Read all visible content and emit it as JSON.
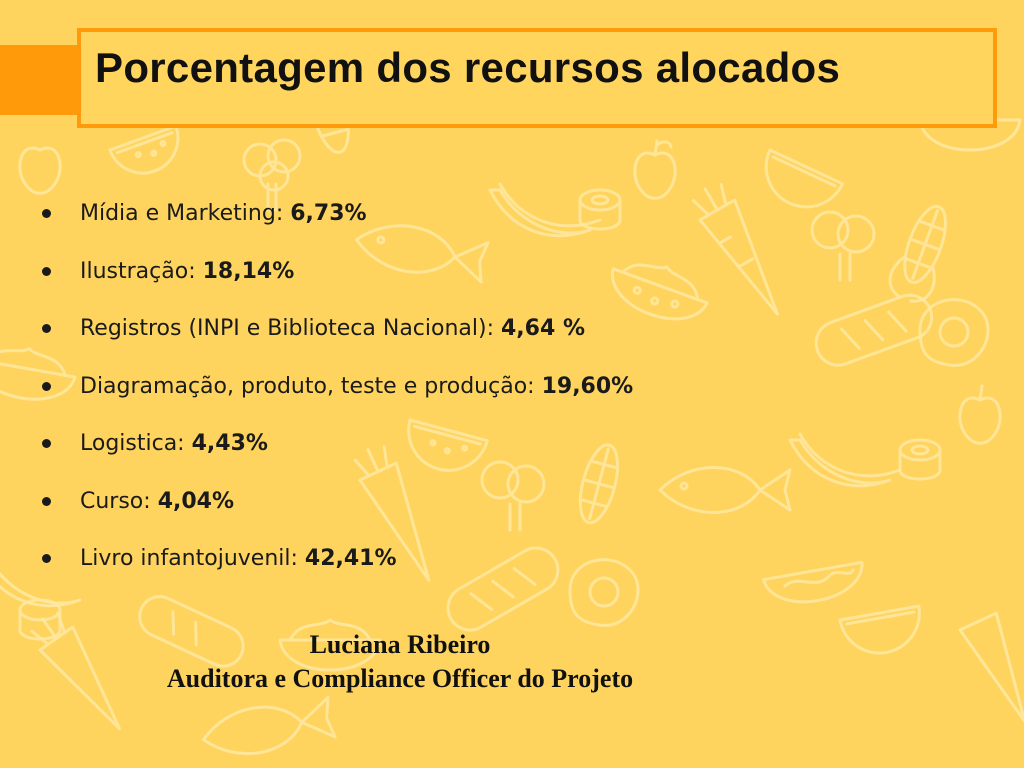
{
  "title": "Porcentagem dos recursos alocados",
  "items": [
    {
      "label": "Mídia e Marketing: ",
      "value": "6,73%"
    },
    {
      "label": "Ilustração: ",
      "value": "18,14%"
    },
    {
      "label": "Registros (INPI e Biblioteca Nacional): ",
      "value": "4,64 %"
    },
    {
      "label": "Diagramação, produto, teste e produção: ",
      "value": "19,60%"
    },
    {
      "label": "Logistica: ",
      "value": "4,43%"
    },
    {
      "label": "Curso: ",
      "value": "4,04%"
    },
    {
      "label": "Livro infantojuvenil: ",
      "value": "42,41%"
    }
  ],
  "signature": {
    "name": "Luciana Ribeiro",
    "role": "Auditora e Compliance Officer do Projeto"
  },
  "colors": {
    "background": "#FFD45E",
    "accent": "#FF9A0A",
    "pattern": "#FFE9A3",
    "text": "#111111"
  },
  "icons": [
    "watermelon-icon",
    "banana-icon",
    "carrot-icon",
    "fish-icon",
    "apple-icon",
    "corn-icon",
    "bread-icon",
    "egg-icon",
    "bowl-icon",
    "sushi-icon"
  ]
}
